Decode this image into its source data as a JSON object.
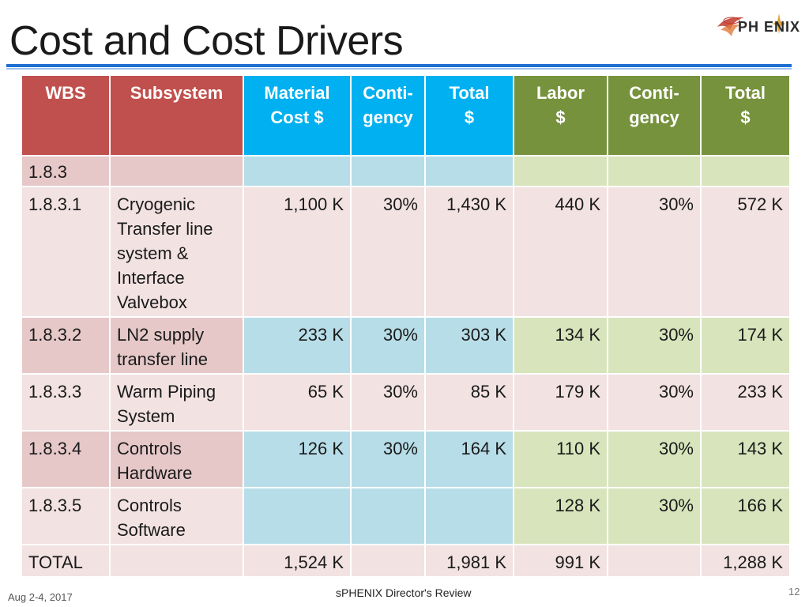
{
  "slide": {
    "title": "Cost and Cost Drivers",
    "logo_text": "PH ENIX",
    "colors": {
      "red_header": "#c0504d",
      "blue_header": "#00b0f0",
      "green_header": "#76923c",
      "title_rule": "#1f6fd1"
    }
  },
  "table": {
    "headers": [
      "WBS",
      "Subsystem",
      "Material Cost $",
      "Conti- gency",
      "Total $",
      "Labor $",
      "Conti- gency",
      "Total $"
    ],
    "header_lines": [
      [
        "WBS"
      ],
      [
        "Subsystem"
      ],
      [
        "Material",
        "Cost $"
      ],
      [
        "Conti-",
        "gency"
      ],
      [
        "Total",
        "$"
      ],
      [
        "Labor",
        "$"
      ],
      [
        "Conti-",
        "gency"
      ],
      [
        "Total",
        "$"
      ]
    ],
    "rows": [
      [
        "1.8.3",
        "",
        "",
        "",
        "",
        "",
        "",
        ""
      ],
      [
        "1.8.3.1",
        "Cryogenic Transfer line system & Interface Valvebox",
        "1,100 K",
        "30%",
        "1,430 K",
        "440 K",
        "30%",
        "572 K"
      ],
      [
        "1.8.3.2",
        "LN2 supply transfer line",
        "233 K",
        "30%",
        "303 K",
        "134 K",
        "30%",
        "174 K"
      ],
      [
        "1.8.3.3",
        "Warm Piping System",
        "65 K",
        "30%",
        "85 K",
        "179 K",
        "30%",
        "233 K"
      ],
      [
        "1.8.3.4",
        "Controls Hardware",
        "126 K",
        "30%",
        "164 K",
        "110 K",
        "30%",
        "143 K"
      ],
      [
        "1.8.3.5",
        "Controls Software",
        "",
        "",
        "",
        "128 K",
        "30%",
        "166 K"
      ],
      [
        "TOTAL",
        "",
        "1,524 K",
        "",
        "1,981 K",
        "991 K",
        "",
        "1,288 K"
      ]
    ]
  },
  "footer": {
    "date": "Aug 2-4, 2017",
    "event": "sPHENIX Director's Review",
    "page": "12"
  }
}
